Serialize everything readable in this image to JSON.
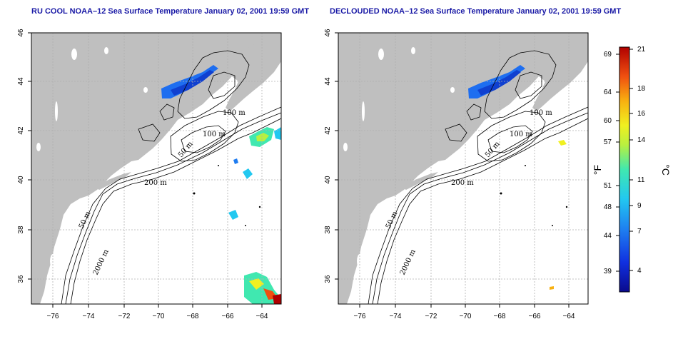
{
  "panels": [
    {
      "title": "RU COOL NOAA–12 Sea Surface Temperature January 02, 2001 19:59 GMT",
      "contour_labels": [
        "100 m",
        "100 m",
        "50 m",
        "200 m",
        "50 m",
        "2000 m"
      ]
    },
    {
      "title": "DECLOUDED NOAA–12 Sea Surface Temperature January 02, 2001 19:59 GMT",
      "contour_labels": [
        "100 m",
        "100 m",
        "50 m",
        "200 m",
        "50 m",
        "2000 m"
      ]
    }
  ],
  "axes": {
    "x_ticks": [
      "−76",
      "−74",
      "−72",
      "−70",
      "−68",
      "−66",
      "−64"
    ],
    "y_ticks": [
      "46",
      "44",
      "42",
      "40",
      "38",
      "36"
    ]
  },
  "colorbar": {
    "fahrenheit_label": "°F",
    "celsius_label": "°C",
    "fahrenheit_ticks": [
      "69",
      "64",
      "60",
      "57",
      "51",
      "48",
      "44",
      "39"
    ],
    "celsius_ticks": [
      "21",
      "18",
      "16",
      "14",
      "11",
      "9",
      "7",
      "4"
    ]
  },
  "colors": {
    "land": "#bfbfbf",
    "ocean": "#ffffff",
    "title": "#1a1aa6",
    "grid": "#b0b0b0"
  }
}
